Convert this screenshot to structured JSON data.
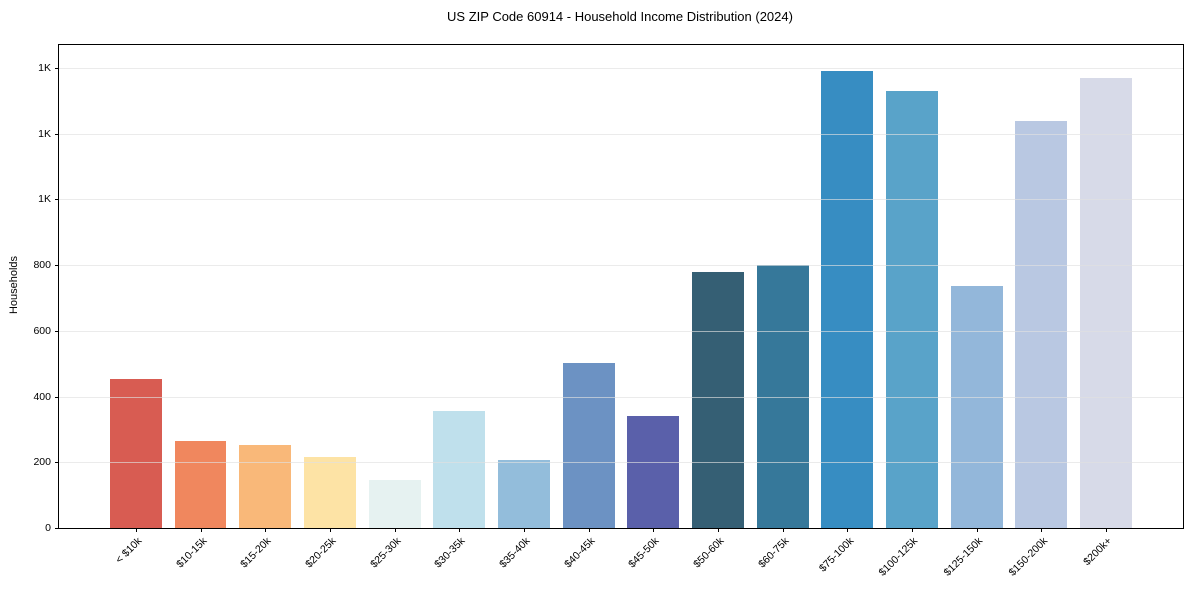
{
  "header": {
    "title": "US ZIP Code 60914 - Household Income Distribution (2024)"
  },
  "chart_data": {
    "type": "bar",
    "title": "US ZIP Code 60914 - Household Income Distribution (2024)",
    "xlabel": "",
    "ylabel": "Households",
    "categories": [
      "< $10k",
      "$10-15k",
      "$15-20k",
      "$20-25k",
      "$25-30k",
      "$30-35k",
      "$35-40k",
      "$40-45k",
      "$45-50k",
      "$50-60k",
      "$60-75k",
      "$75-100k",
      "$100-125k",
      "$125-150k",
      "$150-200k",
      "$200k+"
    ],
    "values": [
      455,
      265,
      253,
      215,
      145,
      355,
      207,
      503,
      341,
      778,
      800,
      1392,
      1330,
      738,
      1240,
      1370
    ],
    "bar_colors": [
      "#d85c52",
      "#f0875e",
      "#f9b879",
      "#fde3a5",
      "#e6f2f1",
      "#bfe0ec",
      "#93bddb",
      "#6c92c3",
      "#5a60aa",
      "#355f74",
      "#36789a",
      "#378dc2",
      "#59a3c9",
      "#93b7da",
      "#b9c8e2",
      "#d7dae8"
    ],
    "ylim": [
      0,
      1470
    ],
    "yticks": {
      "values": [
        0,
        200,
        400,
        600,
        800,
        1000,
        1200,
        1400
      ],
      "labels": [
        "0",
        "200",
        "400",
        "600",
        "800",
        "1K",
        "1K",
        "1K"
      ]
    },
    "grid": "horizontal-only",
    "legend_position": "none",
    "x_tick_rotation_deg": 45
  }
}
